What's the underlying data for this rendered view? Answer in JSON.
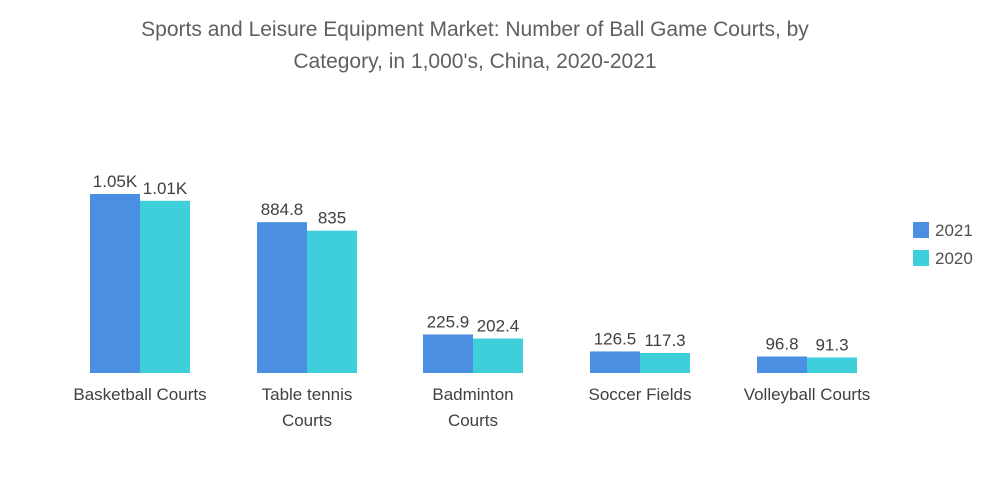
{
  "chart_data": {
    "type": "bar",
    "title": "Sports and Leisure Equipment Market: Number of Ball Game Courts, by Category, in 1,000's, China, 2020-2021",
    "title_lines": [
      "Sports and Leisure Equipment Market: Number of Ball Game Courts, by",
      "Category, in 1,000's, China, 2020-2021"
    ],
    "categories": [
      "Basketball Courts",
      "Table tennis Courts",
      "Badminton Courts",
      "Soccer Fields",
      "Volleyball Courts"
    ],
    "category_lines": [
      [
        "Basketball Courts"
      ],
      [
        "Table tennis",
        "Courts"
      ],
      [
        "Badminton",
        "Courts"
      ],
      [
        "Soccer Fields"
      ],
      [
        "Volleyball Courts"
      ]
    ],
    "series": [
      {
        "name": "2021",
        "color": "#4a8fe2",
        "values": [
          1050,
          884.8,
          225.9,
          126.5,
          96.8
        ],
        "labels": [
          "1.05K",
          "884.8",
          "225.9",
          "126.5",
          "96.8"
        ]
      },
      {
        "name": "2020",
        "color": "#3ecfda",
        "values": [
          1010,
          835,
          202.4,
          117.3,
          91.3
        ],
        "labels": [
          "1.01K",
          "835",
          "202.4",
          "117.3",
          "91.3"
        ]
      }
    ],
    "ylim": [
      0,
      1050
    ],
    "grid": false,
    "legend_position": "right"
  }
}
